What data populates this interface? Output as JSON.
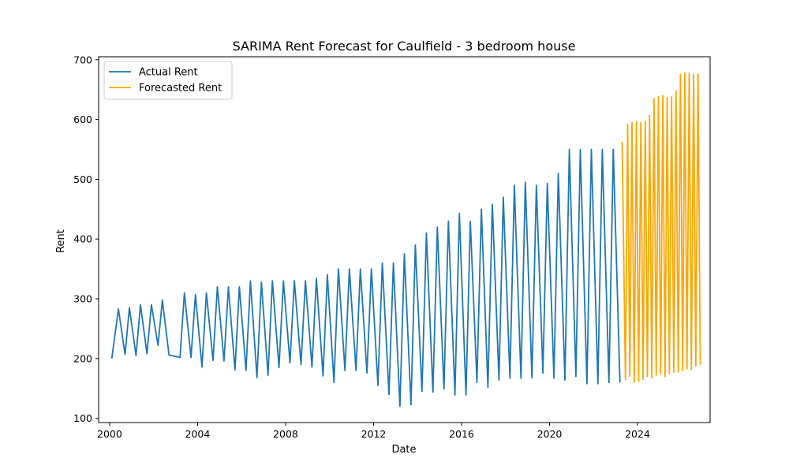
{
  "chart_data": {
    "type": "line",
    "title": "SARIMA Rent Forecast for Caulfield - 3 bedroom house",
    "xlabel": "Date",
    "ylabel": "Rent",
    "xlim": [
      1999.5,
      2027.3
    ],
    "ylim": [
      93,
      705
    ],
    "x_ticks": [
      2000,
      2004,
      2008,
      2012,
      2016,
      2020,
      2024
    ],
    "x_tick_labels": [
      "2000",
      "2004",
      "2008",
      "2012",
      "2016",
      "2020",
      "2024"
    ],
    "y_ticks": [
      100,
      200,
      300,
      400,
      500,
      600,
      700
    ],
    "y_tick_labels": [
      "100",
      "200",
      "300",
      "400",
      "500",
      "600",
      "700"
    ],
    "grid": false,
    "legend_position": "top-left",
    "series": [
      {
        "name": "Actual Rent",
        "color": "#1f77b4",
        "points": [
          [
            2000.1,
            200
          ],
          [
            2000.4,
            283
          ],
          [
            2000.7,
            207
          ],
          [
            2000.9,
            285
          ],
          [
            2001.2,
            205
          ],
          [
            2001.4,
            290
          ],
          [
            2001.7,
            208
          ],
          [
            2001.9,
            290
          ],
          [
            2002.2,
            222
          ],
          [
            2002.4,
            298
          ],
          [
            2002.7,
            206
          ],
          [
            2003.2,
            202
          ],
          [
            2003.4,
            310
          ],
          [
            2003.7,
            202
          ],
          [
            2003.9,
            307
          ],
          [
            2004.2,
            186
          ],
          [
            2004.4,
            310
          ],
          [
            2004.7,
            197
          ],
          [
            2004.9,
            320
          ],
          [
            2005.2,
            196
          ],
          [
            2005.4,
            320
          ],
          [
            2005.7,
            181
          ],
          [
            2005.9,
            320
          ],
          [
            2006.2,
            180
          ],
          [
            2006.4,
            330
          ],
          [
            2006.7,
            168
          ],
          [
            2006.9,
            328
          ],
          [
            2007.2,
            172
          ],
          [
            2007.4,
            330
          ],
          [
            2007.7,
            185
          ],
          [
            2007.9,
            330
          ],
          [
            2008.2,
            193
          ],
          [
            2008.4,
            330
          ],
          [
            2008.7,
            190
          ],
          [
            2008.9,
            330
          ],
          [
            2009.2,
            186
          ],
          [
            2009.4,
            334
          ],
          [
            2009.7,
            171
          ],
          [
            2009.9,
            340
          ],
          [
            2010.2,
            160
          ],
          [
            2010.4,
            350
          ],
          [
            2010.7,
            180
          ],
          [
            2010.9,
            350
          ],
          [
            2011.2,
            180
          ],
          [
            2011.4,
            350
          ],
          [
            2011.7,
            176
          ],
          [
            2011.9,
            350
          ],
          [
            2012.2,
            155
          ],
          [
            2012.4,
            360
          ],
          [
            2012.7,
            140
          ],
          [
            2012.9,
            360
          ],
          [
            2013.2,
            120
          ],
          [
            2013.4,
            375
          ],
          [
            2013.7,
            123
          ],
          [
            2013.9,
            390
          ],
          [
            2014.2,
            145
          ],
          [
            2014.4,
            410
          ],
          [
            2014.7,
            144
          ],
          [
            2014.9,
            420
          ],
          [
            2015.2,
            149
          ],
          [
            2015.4,
            430
          ],
          [
            2015.7,
            139
          ],
          [
            2015.9,
            443
          ],
          [
            2016.2,
            139
          ],
          [
            2016.4,
            430
          ],
          [
            2016.7,
            160
          ],
          [
            2016.9,
            450
          ],
          [
            2017.2,
            152
          ],
          [
            2017.4,
            458
          ],
          [
            2017.7,
            164
          ],
          [
            2017.9,
            470
          ],
          [
            2018.2,
            167
          ],
          [
            2018.4,
            490
          ],
          [
            2018.7,
            167
          ],
          [
            2018.9,
            495
          ],
          [
            2019.2,
            168
          ],
          [
            2019.4,
            490
          ],
          [
            2019.7,
            176
          ],
          [
            2019.9,
            493
          ],
          [
            2020.2,
            167
          ],
          [
            2020.4,
            510
          ],
          [
            2020.7,
            164
          ],
          [
            2020.9,
            550
          ],
          [
            2021.2,
            170
          ],
          [
            2021.4,
            550
          ],
          [
            2021.7,
            158
          ],
          [
            2021.9,
            550
          ],
          [
            2022.2,
            158
          ],
          [
            2022.4,
            550
          ],
          [
            2022.7,
            160
          ],
          [
            2022.9,
            550
          ],
          [
            2023.2,
            160
          ]
        ]
      },
      {
        "name": "Forecasted Rent",
        "color": "#ffa500",
        "points": [
          [
            2023.3,
            563
          ],
          [
            2023.45,
            165
          ],
          [
            2023.55,
            592
          ],
          [
            2023.65,
            170
          ],
          [
            2023.75,
            595
          ],
          [
            2023.85,
            160
          ],
          [
            2023.95,
            597
          ],
          [
            2024.05,
            162
          ],
          [
            2024.15,
            595
          ],
          [
            2024.25,
            165
          ],
          [
            2024.35,
            597
          ],
          [
            2024.45,
            170
          ],
          [
            2024.55,
            607
          ],
          [
            2024.65,
            168
          ],
          [
            2024.75,
            635
          ],
          [
            2024.85,
            172
          ],
          [
            2024.95,
            638
          ],
          [
            2025.05,
            175
          ],
          [
            2025.15,
            640
          ],
          [
            2025.25,
            170
          ],
          [
            2025.35,
            637
          ],
          [
            2025.45,
            175
          ],
          [
            2025.55,
            638
          ],
          [
            2025.65,
            177
          ],
          [
            2025.75,
            648
          ],
          [
            2025.85,
            178
          ],
          [
            2025.95,
            675
          ],
          [
            2026.05,
            180
          ],
          [
            2026.15,
            678
          ],
          [
            2026.25,
            183
          ],
          [
            2026.35,
            678
          ],
          [
            2026.45,
            182
          ],
          [
            2026.55,
            675
          ],
          [
            2026.65,
            188
          ],
          [
            2026.75,
            676
          ],
          [
            2026.85,
            190
          ]
        ]
      }
    ]
  }
}
